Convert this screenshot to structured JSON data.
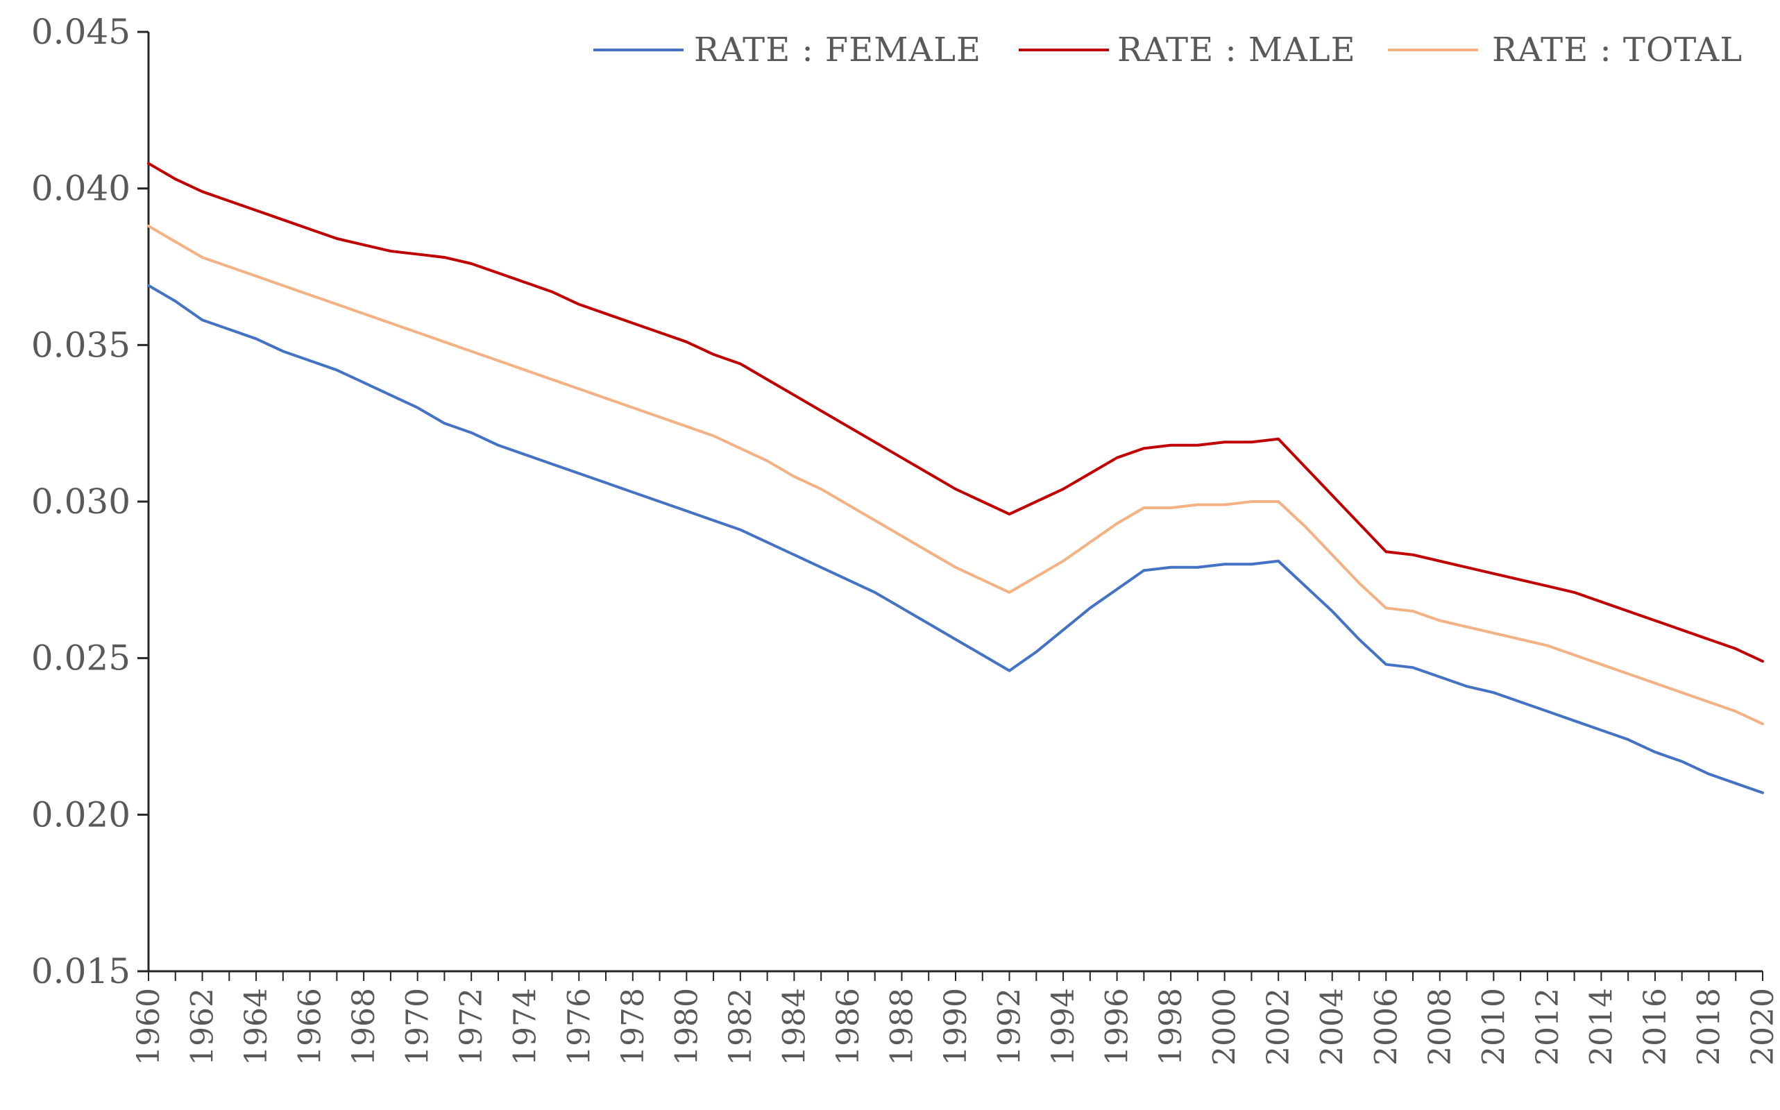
{
  "chart_data": {
    "type": "line",
    "title": "",
    "xlabel": "",
    "ylabel": "",
    "ylim": [
      0.015,
      0.045
    ],
    "yticks": [
      "0.015",
      "0.020",
      "0.025",
      "0.030",
      "0.035",
      "0.040",
      "0.045"
    ],
    "x": [
      1960,
      1961,
      1962,
      1963,
      1964,
      1965,
      1966,
      1967,
      1968,
      1969,
      1970,
      1971,
      1972,
      1973,
      1974,
      1975,
      1976,
      1977,
      1978,
      1979,
      1980,
      1981,
      1982,
      1983,
      1984,
      1985,
      1986,
      1987,
      1988,
      1989,
      1990,
      1991,
      1992,
      1993,
      1994,
      1995,
      1996,
      1997,
      1998,
      1999,
      2000,
      2001,
      2002,
      2003,
      2004,
      2005,
      2006,
      2007,
      2008,
      2009,
      2010,
      2011,
      2012,
      2013,
      2014,
      2015,
      2016,
      2017,
      2018,
      2019,
      2020
    ],
    "xtick_labels": [
      "1960",
      "1962",
      "1964",
      "1966",
      "1968",
      "1970",
      "1972",
      "1974",
      "1976",
      "1978",
      "1980",
      "1982",
      "1984",
      "1986",
      "1988",
      "1990",
      "1992",
      "1994",
      "1996",
      "1998",
      "2000",
      "2002",
      "2004",
      "2006",
      "2008",
      "2010",
      "2012",
      "2014",
      "2016",
      "2018",
      "2020"
    ],
    "legend_position": "top-right",
    "grid": false,
    "series": [
      {
        "name": "RATE : FEMALE",
        "color": "#4472C4",
        "values": [
          0.0369,
          0.0364,
          0.0358,
          0.0355,
          0.0352,
          0.0348,
          0.0345,
          0.0342,
          0.0338,
          0.0334,
          0.033,
          0.0325,
          0.0322,
          0.0318,
          0.0315,
          0.0312,
          0.0309,
          0.0306,
          0.0303,
          0.03,
          0.0297,
          0.0294,
          0.0291,
          0.0287,
          0.0283,
          0.0279,
          0.0275,
          0.0271,
          0.0266,
          0.0261,
          0.0256,
          0.0251,
          0.0246,
          0.0252,
          0.0259,
          0.0266,
          0.0272,
          0.0278,
          0.0279,
          0.0279,
          0.028,
          0.028,
          0.0281,
          0.0273,
          0.0265,
          0.0256,
          0.0248,
          0.0247,
          0.0244,
          0.0241,
          0.0239,
          0.0236,
          0.0233,
          0.023,
          0.0227,
          0.0224,
          0.022,
          0.0217,
          0.0213,
          0.021,
          0.0207
        ]
      },
      {
        "name": "RATE : MALE",
        "color": "#C00000",
        "values": [
          0.0408,
          0.0403,
          0.0399,
          0.0396,
          0.0393,
          0.039,
          0.0387,
          0.0384,
          0.0382,
          0.038,
          0.0379,
          0.0378,
          0.0376,
          0.0373,
          0.037,
          0.0367,
          0.0363,
          0.036,
          0.0357,
          0.0354,
          0.0351,
          0.0347,
          0.0344,
          0.0339,
          0.0334,
          0.0329,
          0.0324,
          0.0319,
          0.0314,
          0.0309,
          0.0304,
          0.03,
          0.0296,
          0.03,
          0.0304,
          0.0309,
          0.0314,
          0.0317,
          0.0318,
          0.0318,
          0.0319,
          0.0319,
          0.032,
          0.0311,
          0.0302,
          0.0293,
          0.0284,
          0.0283,
          0.0281,
          0.0279,
          0.0277,
          0.0275,
          0.0273,
          0.0271,
          0.0268,
          0.0265,
          0.0262,
          0.0259,
          0.0256,
          0.0253,
          0.0249
        ]
      },
      {
        "name": "RATE : TOTAL",
        "color": "#F4B183",
        "values": [
          0.0388,
          0.0383,
          0.0378,
          0.0375,
          0.0372,
          0.0369,
          0.0366,
          0.0363,
          0.036,
          0.0357,
          0.0354,
          0.0351,
          0.0348,
          0.0345,
          0.0342,
          0.0339,
          0.0336,
          0.0333,
          0.033,
          0.0327,
          0.0324,
          0.0321,
          0.0317,
          0.0313,
          0.0308,
          0.0304,
          0.0299,
          0.0294,
          0.0289,
          0.0284,
          0.0279,
          0.0275,
          0.0271,
          0.0276,
          0.0281,
          0.0287,
          0.0293,
          0.0298,
          0.0298,
          0.0299,
          0.0299,
          0.03,
          0.03,
          0.0292,
          0.0283,
          0.0274,
          0.0266,
          0.0265,
          0.0262,
          0.026,
          0.0258,
          0.0256,
          0.0254,
          0.0251,
          0.0248,
          0.0245,
          0.0242,
          0.0239,
          0.0236,
          0.0233,
          0.0229
        ]
      }
    ]
  }
}
